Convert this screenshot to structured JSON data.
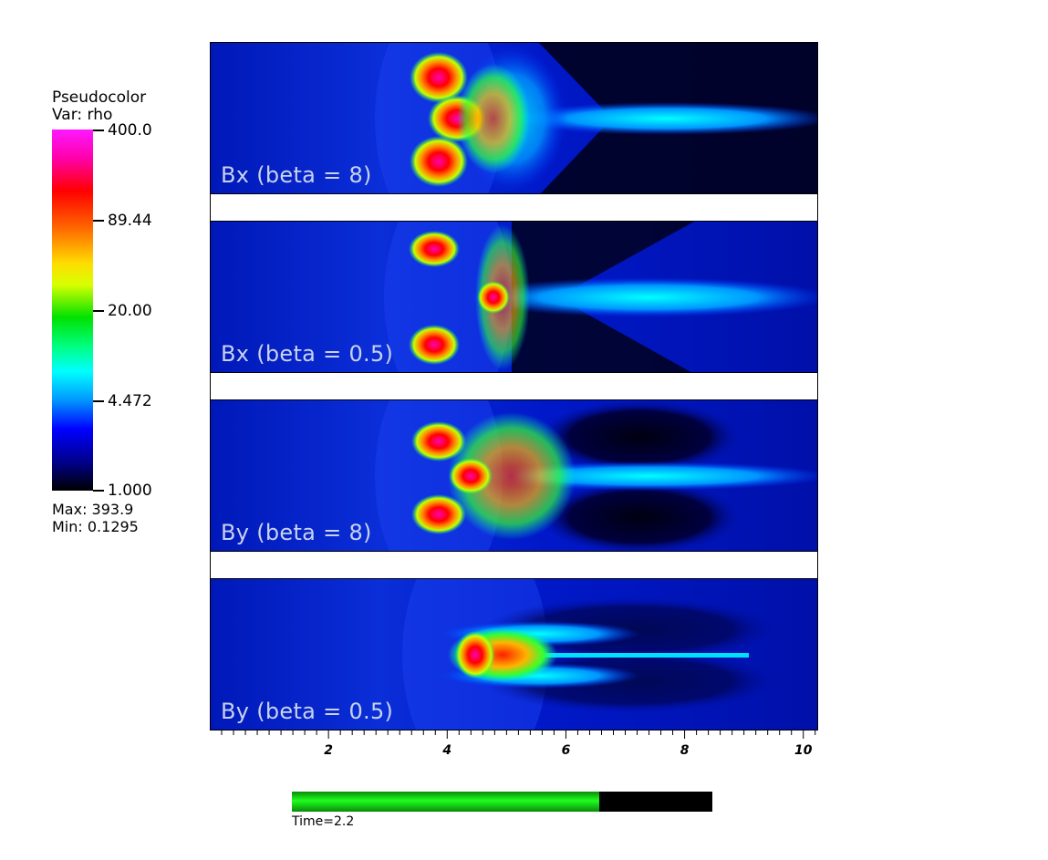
{
  "legend": {
    "title_line1": "Pseudocolor",
    "title_line2": "Var: rho",
    "ticks": [
      "400.0",
      "89.44",
      "20.00",
      "4.472",
      "1.000"
    ],
    "max_text": "Max:  393.9",
    "min_text": "Min:  0.1295"
  },
  "panels": [
    {
      "label": "Bx (beta = 8)"
    },
    {
      "label": "Bx (beta = 0.5)"
    },
    {
      "label": "By (beta = 8)"
    },
    {
      "label": "By (beta = 0.5)"
    }
  ],
  "axis": {
    "labels": [
      "2",
      "4",
      "6",
      "8",
      "10"
    ],
    "values": [
      2,
      4,
      6,
      8,
      10
    ],
    "range": [
      0,
      10.25
    ]
  },
  "time": {
    "label": "Time=2.2",
    "progress": 0.73
  }
}
